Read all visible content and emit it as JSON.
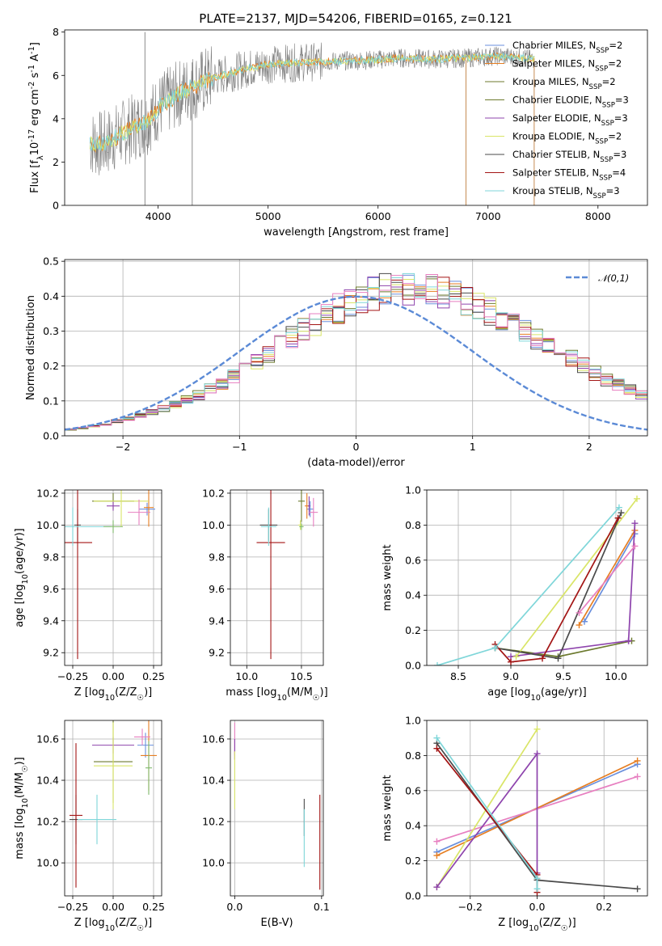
{
  "figure": {
    "title": "PLATE=2137, MJD=54206, FIBERID=0165, z=0.121"
  },
  "colors": {
    "models": [
      "#6a8fdc",
      "#e67e22",
      "#6c7a2e",
      "#8e44ad",
      "#d9e567",
      "#4a4a4a",
      "#a31515",
      "#7fd6d9",
      "#e77fc0",
      "#7fb86a"
    ],
    "data": "#7f7f7f",
    "normal": "#5b8ad6"
  },
  "chart_data": [
    {
      "id": "spectrum",
      "type": "line",
      "xlabel": "wavelength [Angstrom, rest frame]",
      "ylabel": "Flux [f$_\\lambda$10$^{-17}$ erg cm$^{-2}$ s$^{-1}$ A$^{-1}$]",
      "xlim": [
        3150,
        8450
      ],
      "ylim": [
        0,
        8.1
      ],
      "xticks": [
        4000,
        5000,
        6000,
        7000,
        8000
      ],
      "yticks": [
        0,
        2,
        4,
        6,
        8
      ],
      "continuum": {
        "x": [
          3380,
          3500,
          3700,
          3900,
          4000,
          4200,
          4500,
          4800,
          5000,
          5300,
          5600,
          5900,
          6200,
          6500,
          6800,
          7100,
          7420
        ],
        "y": [
          2.9,
          2.8,
          3.4,
          3.9,
          4.5,
          5.2,
          5.9,
          6.3,
          6.5,
          6.6,
          6.65,
          6.7,
          6.8,
          6.75,
          6.8,
          6.9,
          6.75
        ]
      },
      "spikes": [
        {
          "x": 3880,
          "y_min": 0,
          "y_max": 8.0
        },
        {
          "x": 4310,
          "y_min": 0,
          "y_max": 6.6
        },
        {
          "x": 6800,
          "y_min": 0,
          "y_max": 6.7
        },
        {
          "x": 7420,
          "y_min": 0,
          "y_max": 6.8
        }
      ],
      "legend": [
        "Chabrier MILES, N$_{SSP}$=2",
        "Salpeter MILES, N$_{SSP}$=2",
        "Kroupa MILES, N$_{SSP}$=2",
        "Chabrier ELODIE, N$_{SSP}$=3",
        "Salpeter ELODIE, N$_{SSP}$=3",
        "Kroupa ELODIE, N$_{SSP}$=2",
        "Chabrier STELIB, N$_{SSP}$=3",
        "Salpeter STELIB, N$_{SSP}$=4",
        "Kroupa STELIB, N$_{SSP}$=3"
      ],
      "legend_colors": [
        0,
        1,
        2,
        2,
        3,
        4,
        5,
        6,
        7
      ],
      "legend_placement": "right"
    },
    {
      "id": "residuals",
      "type": "area",
      "xlabel": "(data-model)/error",
      "ylabel": "Normed distribution",
      "xlim": [
        -2.5,
        2.5
      ],
      "ylim": [
        0,
        0.505
      ],
      "xticks": [
        -2,
        -1,
        0,
        1,
        2
      ],
      "yticks": [
        0.0,
        0.1,
        0.2,
        0.3,
        0.4,
        0.5
      ],
      "bin_edges_from": -2.5,
      "bin_width": 0.1,
      "base_hist": [
        0.018,
        0.022,
        0.028,
        0.034,
        0.041,
        0.049,
        0.058,
        0.068,
        0.078,
        0.09,
        0.103,
        0.117,
        0.133,
        0.151,
        0.17,
        0.19,
        0.212,
        0.235,
        0.258,
        0.281,
        0.303,
        0.325,
        0.345,
        0.364,
        0.381,
        0.395,
        0.407,
        0.416,
        0.422,
        0.425,
        0.425,
        0.421,
        0.414,
        0.404,
        0.392,
        0.377,
        0.36,
        0.342,
        0.322,
        0.302,
        0.281,
        0.26,
        0.239,
        0.219,
        0.199,
        0.18,
        0.162,
        0.146,
        0.131,
        0.117
      ],
      "normal_label": "$\\mathcal{N}(0,1)$",
      "normal_mu": 0,
      "normal_sigma": 1,
      "legend_placement": "top-right"
    },
    {
      "id": "age-vs-Z",
      "type": "scatter",
      "xlabel": "Z [log$_{10}$(Z/Z$_\\odot$)]",
      "ylabel": "age  [log$_{10}$(age/yr)]",
      "xlim": [
        -0.3,
        0.3
      ],
      "ylim": [
        9.12,
        10.22
      ],
      "xticks": [
        -0.25,
        0.0,
        0.25
      ],
      "yticks": [
        9.2,
        9.4,
        9.6,
        9.8,
        10.0,
        10.2
      ],
      "crosses": [
        {
          "x": 0.21,
          "y": 10.1,
          "xerr": 0.05,
          "yerr": 0.04,
          "c": 0
        },
        {
          "x": 0.22,
          "y": 10.11,
          "xerr": 0.03,
          "yerr": 0.12,
          "c": 1
        },
        {
          "x": 0.0,
          "y": 10.15,
          "xerr": 0.13,
          "yerr": 0.05,
          "c": 2
        },
        {
          "x": -0.0,
          "y": 10.12,
          "xerr": 0.04,
          "yerr": 0.03,
          "c": 3
        },
        {
          "x": 0.05,
          "y": 10.15,
          "xerr": 0.17,
          "yerr": 0.16,
          "c": 4
        },
        {
          "x": -0.22,
          "y": 10.0,
          "xerr": 0.02,
          "yerr": 0.1,
          "c": 5
        },
        {
          "x": -0.22,
          "y": 9.89,
          "xerr": 0.09,
          "yerr": 0.73,
          "c": 6
        },
        {
          "x": -0.25,
          "y": 9.99,
          "xerr": 0.24,
          "yerr": 0.12,
          "c": 7
        },
        {
          "x": 0.16,
          "y": 10.08,
          "xerr": 0.07,
          "yerr": 0.08,
          "c": 8
        },
        {
          "x": 0.0,
          "y": 9.99,
          "xerr": 0.06,
          "yerr": 0.04,
          "c": 9
        }
      ]
    },
    {
      "id": "age-vs-mass",
      "type": "scatter",
      "xlabel": "mass [log$_{10}$(M/M$_\\odot$)]",
      "ylabel": "",
      "xlim": [
        9.85,
        10.7
      ],
      "ylim": [
        9.12,
        10.22
      ],
      "xticks": [
        10.0,
        10.5
      ],
      "yticks": [
        9.2,
        9.4,
        9.6,
        9.8,
        10.0,
        10.2
      ],
      "crosses": [
        {
          "x": 10.58,
          "y": 10.1,
          "xerr": 0.03,
          "yerr": 0.05,
          "c": 0
        },
        {
          "x": 10.55,
          "y": 10.12,
          "xerr": 0.02,
          "yerr": 0.08,
          "c": 1
        },
        {
          "x": 10.5,
          "y": 10.15,
          "xerr": 0.03,
          "yerr": 0.13,
          "c": 2
        },
        {
          "x": 10.57,
          "y": 10.12,
          "xerr": 0.01,
          "yerr": 0.06,
          "c": 3
        },
        {
          "x": 10.49,
          "y": 10.0,
          "xerr": 0.02,
          "yerr": 0.03,
          "c": 4
        },
        {
          "x": 10.2,
          "y": 10.0,
          "xerr": 0.08,
          "yerr": 0.1,
          "c": 5
        },
        {
          "x": 10.22,
          "y": 9.89,
          "xerr": 0.13,
          "yerr": 0.73,
          "c": 6
        },
        {
          "x": 10.2,
          "y": 9.99,
          "xerr": 0.07,
          "yerr": 0.12,
          "c": 7
        },
        {
          "x": 10.61,
          "y": 10.08,
          "xerr": 0.04,
          "yerr": 0.09,
          "c": 8
        },
        {
          "x": 10.5,
          "y": 9.99,
          "xerr": 0.02,
          "yerr": 0.02,
          "c": 9
        }
      ]
    },
    {
      "id": "weight-vs-age",
      "type": "line",
      "xlabel": "age  [log$_{10}$(age/yr)]",
      "ylabel": "mass weight",
      "xlim": [
        8.2,
        10.3
      ],
      "ylim": [
        0,
        1.0
      ],
      "xticks": [
        8.5,
        9.0,
        9.5,
        10.0
      ],
      "yticks": [
        0.0,
        0.2,
        0.4,
        0.6,
        0.8,
        1.0
      ],
      "series": [
        {
          "c": 0,
          "x": [
            9.7,
            10.18
          ],
          "y": [
            0.25,
            0.75
          ]
        },
        {
          "c": 1,
          "x": [
            9.65,
            10.18
          ],
          "y": [
            0.23,
            0.77
          ]
        },
        {
          "c": 2,
          "x": [
            8.85,
            9.45,
            10.15
          ],
          "y": [
            0.1,
            0.05,
            0.14
          ]
        },
        {
          "c": 3,
          "x": [
            9.0,
            10.12,
            10.18,
            10.12
          ],
          "y": [
            0.05,
            0.14,
            0.81,
            0.14
          ]
        },
        {
          "c": 4,
          "x": [
            9.05,
            10.2
          ],
          "y": [
            0.05,
            0.95
          ]
        },
        {
          "c": 5,
          "x": [
            8.85,
            9.45,
            10.05
          ],
          "y": [
            0.1,
            0.04,
            0.87
          ]
        },
        {
          "c": 6,
          "x": [
            8.85,
            9.0,
            9.3,
            10.02
          ],
          "y": [
            0.12,
            0.02,
            0.04,
            0.84
          ]
        },
        {
          "c": 7,
          "x": [
            8.3,
            8.85,
            10.03
          ],
          "y": [
            0.0,
            0.1,
            0.9
          ]
        },
        {
          "c": 8,
          "x": [
            9.65,
            10.18
          ],
          "y": [
            0.3,
            0.68
          ]
        }
      ]
    },
    {
      "id": "mass-vs-Z",
      "type": "scatter",
      "xlabel": "Z [log$_{10}$(Z/Z$_\\odot$)]",
      "ylabel": "mass [log$_{10}$(M/M$_\\odot$)]",
      "xlim": [
        -0.3,
        0.3
      ],
      "ylim": [
        9.84,
        10.69
      ],
      "xticks": [
        -0.25,
        0.0,
        0.25
      ],
      "yticks": [
        10.0,
        10.2,
        10.4,
        10.6
      ],
      "crosses": [
        {
          "x": 0.2,
          "y": 10.57,
          "xerr": 0.05,
          "yerr": 0.06,
          "c": 0
        },
        {
          "x": 0.22,
          "y": 10.52,
          "xerr": 0.05,
          "yerr": 0.17,
          "c": 1
        },
        {
          "x": 0.0,
          "y": 10.49,
          "xerr": 0.12,
          "yerr": 0.2,
          "c": 2
        },
        {
          "x": -0.0,
          "y": 10.57,
          "xerr": 0.13,
          "yerr": 0.04,
          "c": 3
        },
        {
          "x": -0.0,
          "y": 10.47,
          "xerr": 0.12,
          "yerr": 0.21,
          "c": 4
        },
        {
          "x": -0.23,
          "y": 10.21,
          "xerr": 0.04,
          "yerr": 0.12,
          "c": 5
        },
        {
          "x": -0.23,
          "y": 10.23,
          "xerr": 0.04,
          "yerr": 0.35,
          "c": 6
        },
        {
          "x": -0.1,
          "y": 10.21,
          "xerr": 0.12,
          "yerr": 0.12,
          "c": 7
        },
        {
          "x": 0.18,
          "y": 10.61,
          "xerr": 0.05,
          "yerr": 0.04,
          "c": 8
        },
        {
          "x": 0.22,
          "y": 10.46,
          "xerr": 0.02,
          "yerr": 0.13,
          "c": 9
        }
      ]
    },
    {
      "id": "mass-vs-ebv",
      "type": "scatter",
      "xlabel": "E(B-V)",
      "ylabel": "",
      "xlim": [
        -0.005,
        0.102
      ],
      "ylim": [
        9.84,
        10.69
      ],
      "xticks": [
        0.0,
        0.1
      ],
      "yticks": [
        10.0,
        10.2,
        10.4,
        10.6
      ],
      "crosses": [
        {
          "x": 0.0,
          "y": 10.6,
          "xerr": 0.0,
          "yerr": 0.08,
          "c": 8
        },
        {
          "x": 0.0,
          "y": 10.55,
          "xerr": 0.0,
          "yerr": 0.05,
          "c": 3
        },
        {
          "x": 0.0,
          "y": 10.4,
          "xerr": 0.0,
          "yerr": 0.14,
          "c": 4
        },
        {
          "x": 0.08,
          "y": 10.22,
          "xerr": 0.0,
          "yerr": 0.09,
          "c": 5
        },
        {
          "x": 0.08,
          "y": 10.12,
          "xerr": 0.0,
          "yerr": 0.14,
          "c": 7
        },
        {
          "x": 0.098,
          "y": 10.1,
          "xerr": 0.0,
          "yerr": 0.23,
          "c": 6
        }
      ]
    },
    {
      "id": "weight-vs-Z",
      "type": "line",
      "xlabel": "Z [log$_{10}$(Z/Z$_\\odot$)]",
      "ylabel": "mass weight",
      "xlim": [
        -0.33,
        0.33
      ],
      "ylim": [
        0,
        1.0
      ],
      "xticks": [
        -0.2,
        0.0,
        0.2
      ],
      "yticks": [
        0.0,
        0.2,
        0.4,
        0.6,
        0.8,
        1.0
      ],
      "series": [
        {
          "c": 0,
          "x": [
            -0.3,
            0.3
          ],
          "y": [
            0.25,
            0.75
          ]
        },
        {
          "c": 1,
          "x": [
            -0.3,
            0.3
          ],
          "y": [
            0.23,
            0.77
          ]
        },
        {
          "c": 8,
          "x": [
            -0.3,
            0.3
          ],
          "y": [
            0.31,
            0.68
          ]
        },
        {
          "c": 4,
          "x": [
            -0.3,
            0.0
          ],
          "y": [
            0.05,
            0.95
          ]
        },
        {
          "c": 3,
          "x": [
            -0.3,
            0.0,
            0.0
          ],
          "y": [
            0.05,
            0.81,
            0.13
          ]
        },
        {
          "c": 5,
          "x": [
            -0.3,
            0.0,
            0.3
          ],
          "y": [
            0.87,
            0.09,
            0.04
          ]
        },
        {
          "c": 6,
          "x": [
            -0.3,
            0.0,
            0.0
          ],
          "y": [
            0.84,
            0.12,
            0.02
          ]
        },
        {
          "c": 7,
          "x": [
            -0.3,
            0.0,
            0.0
          ],
          "y": [
            0.9,
            0.1,
            0.04
          ]
        }
      ]
    }
  ]
}
